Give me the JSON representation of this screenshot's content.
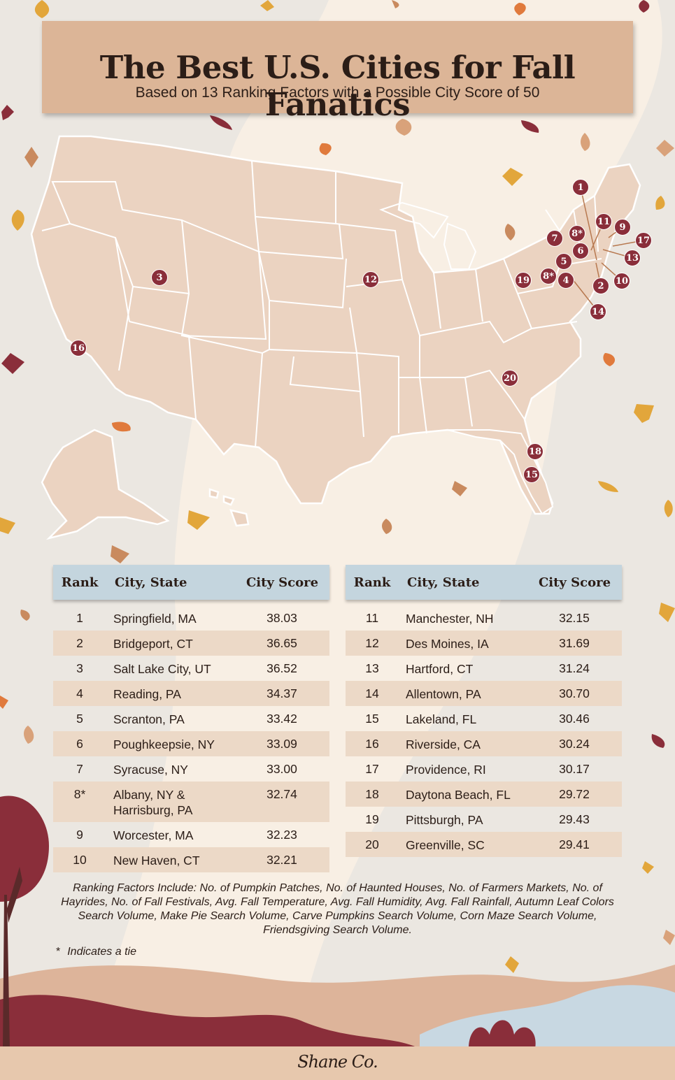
{
  "header": {
    "title": "The Best U.S. Cities for Fall Fanatics",
    "subtitle": "Based on 13 Ranking Factors with a Possible City Score of 50"
  },
  "map": {
    "markers": [
      "1",
      "2",
      "3",
      "4",
      "5",
      "6",
      "7",
      "8*",
      "8*",
      "9",
      "10",
      "11",
      "12",
      "13",
      "14",
      "15",
      "16",
      "17",
      "18",
      "19",
      "20"
    ]
  },
  "table": {
    "columns": {
      "rank": "Rank",
      "city": "City, State",
      "score": "City Score"
    },
    "left": [
      {
        "rank": "1",
        "city": "Springfield, MA",
        "score": "38.03"
      },
      {
        "rank": "2",
        "city": "Bridgeport, CT",
        "score": "36.65"
      },
      {
        "rank": "3",
        "city": "Salt Lake City, UT",
        "score": "36.52"
      },
      {
        "rank": "4",
        "city": "Reading, PA",
        "score": "34.37"
      },
      {
        "rank": "5",
        "city": "Scranton, PA",
        "score": "33.42"
      },
      {
        "rank": "6",
        "city": "Poughkeepsie, NY",
        "score": "33.09"
      },
      {
        "rank": "7",
        "city": "Syracuse, NY",
        "score": "33.00"
      },
      {
        "rank": "8*",
        "city": "Albany, NY & Harrisburg, PA",
        "score": "32.74"
      },
      {
        "rank": "9",
        "city": "Worcester, MA",
        "score": "32.23"
      },
      {
        "rank": "10",
        "city": "New Haven, CT",
        "score": "32.21"
      }
    ],
    "right": [
      {
        "rank": "11",
        "city": "Manchester, NH",
        "score": "32.15"
      },
      {
        "rank": "12",
        "city": "Des Moines, IA",
        "score": "31.69"
      },
      {
        "rank": "13",
        "city": "Hartford, CT",
        "score": "31.24"
      },
      {
        "rank": "14",
        "city": "Allentown, PA",
        "score": "30.70"
      },
      {
        "rank": "15",
        "city": "Lakeland, FL",
        "score": "30.46"
      },
      {
        "rank": "16",
        "city": "Riverside, CA",
        "score": "30.24"
      },
      {
        "rank": "17",
        "city": "Providence, RI",
        "score": "30.17"
      },
      {
        "rank": "18",
        "city": "Daytona Beach, FL",
        "score": "29.72"
      },
      {
        "rank": "19",
        "city": "Pittsburgh, PA",
        "score": "29.43"
      },
      {
        "rank": "20",
        "city": "Greenville, SC",
        "score": "29.41"
      }
    ]
  },
  "footnote": {
    "factors": "Ranking Factors Include: No. of Pumpkin Patches, No. of Haunted Houses, No. of Farmers Markets, No. of Hayrides, No. of Fall Festivals, Avg. Fall Temperature, Avg. Fall Humidity, Avg. Fall Rainfall, Autumn Leaf Colors Search Volume, Make Pie Search Volume, Carve Pumpkins Search Volume, Corn Maze Search Volume, Friendsgiving Search Volume.",
    "tie_symbol": "*",
    "tie_note": "Indicates a tie"
  },
  "brand": "Shane Co.",
  "colors": {
    "background": "#ebe7e1",
    "map_fill": "#ebd3c1",
    "marker": "#8a2e3a",
    "banner": "#dcb597",
    "table_header": "#c4d5de",
    "row_shade": "#ecd9c7"
  }
}
